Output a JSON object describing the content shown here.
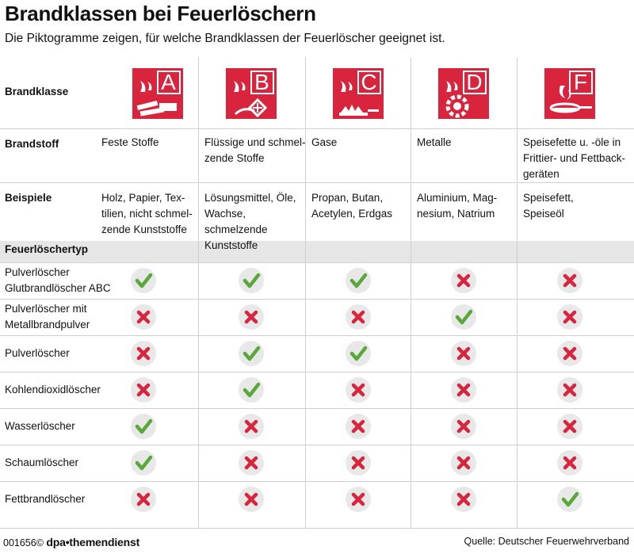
{
  "title": "Brandklassen bei Feuerlöschern",
  "subtitle": "Die Piktogramme zeigen, für welche Brandklassen der Feuerlöscher geeignet ist.",
  "labels": {
    "brandklasse": "Brandklasse",
    "brandstoff": "Brandstoff",
    "beispiele": "Beispiele",
    "feuerloeschertyp": "Feuerlöschertyp"
  },
  "classes": [
    {
      "letter": "A",
      "icon": "solid-fire-icon",
      "stoff": "Feste Stoffe",
      "beispiele": "Holz, Papier, Tex-\ntilien, nicht schmel-\nzende Kunststoffe"
    },
    {
      "letter": "B",
      "icon": "liquid-fire-icon",
      "stoff": "Flüssige und schmel-\nzende Stoffe",
      "beispiele": "Lösungsmittel, Öle,\nWachse, schmelzende\nKunststoffe"
    },
    {
      "letter": "C",
      "icon": "gas-fire-icon",
      "stoff": "Gase",
      "beispiele": "Propan, Butan,\nAcetylen, Erdgas"
    },
    {
      "letter": "D",
      "icon": "metal-fire-icon",
      "stoff": "Metalle",
      "beispiele": "Aluminium, Mag-\nnesium, Natrium"
    },
    {
      "letter": "F",
      "icon": "cooking-fat-fire-icon",
      "stoff": "Speisefette u. -öle in\nFrittier- und Fettback-\ngeräten",
      "beispiele": "Speisefett,\nSpeiseöl"
    }
  ],
  "extinguishers": [
    {
      "name": "Pulverlöscher\nGlutbrandlöscher ABC",
      "suitable": [
        true,
        true,
        true,
        false,
        false
      ]
    },
    {
      "name": "Pulverlöscher mit\nMetallbrandpulver",
      "suitable": [
        false,
        false,
        false,
        true,
        false
      ]
    },
    {
      "name": "Pulverlöscher",
      "suitable": [
        false,
        true,
        true,
        false,
        false
      ]
    },
    {
      "name": "Kohlendioxidlöscher",
      "suitable": [
        false,
        true,
        false,
        false,
        false
      ]
    },
    {
      "name": "Wasserlöscher",
      "suitable": [
        true,
        false,
        false,
        false,
        false
      ]
    },
    {
      "name": "Schaumlöscher",
      "suitable": [
        true,
        false,
        false,
        false,
        false
      ]
    },
    {
      "name": "Fettbrandlöscher",
      "suitable": [
        false,
        false,
        false,
        false,
        true
      ]
    }
  ],
  "colors": {
    "pictogram": "#d8253d",
    "check": "#5aa83a",
    "cross": "#d8253d",
    "mark_bg": "#e8e8e8"
  },
  "footer": {
    "id": "001656",
    "copyright": "©",
    "brand": "dpa•themendienst",
    "source": "Quelle: Deutscher Feuerwehrverband"
  }
}
